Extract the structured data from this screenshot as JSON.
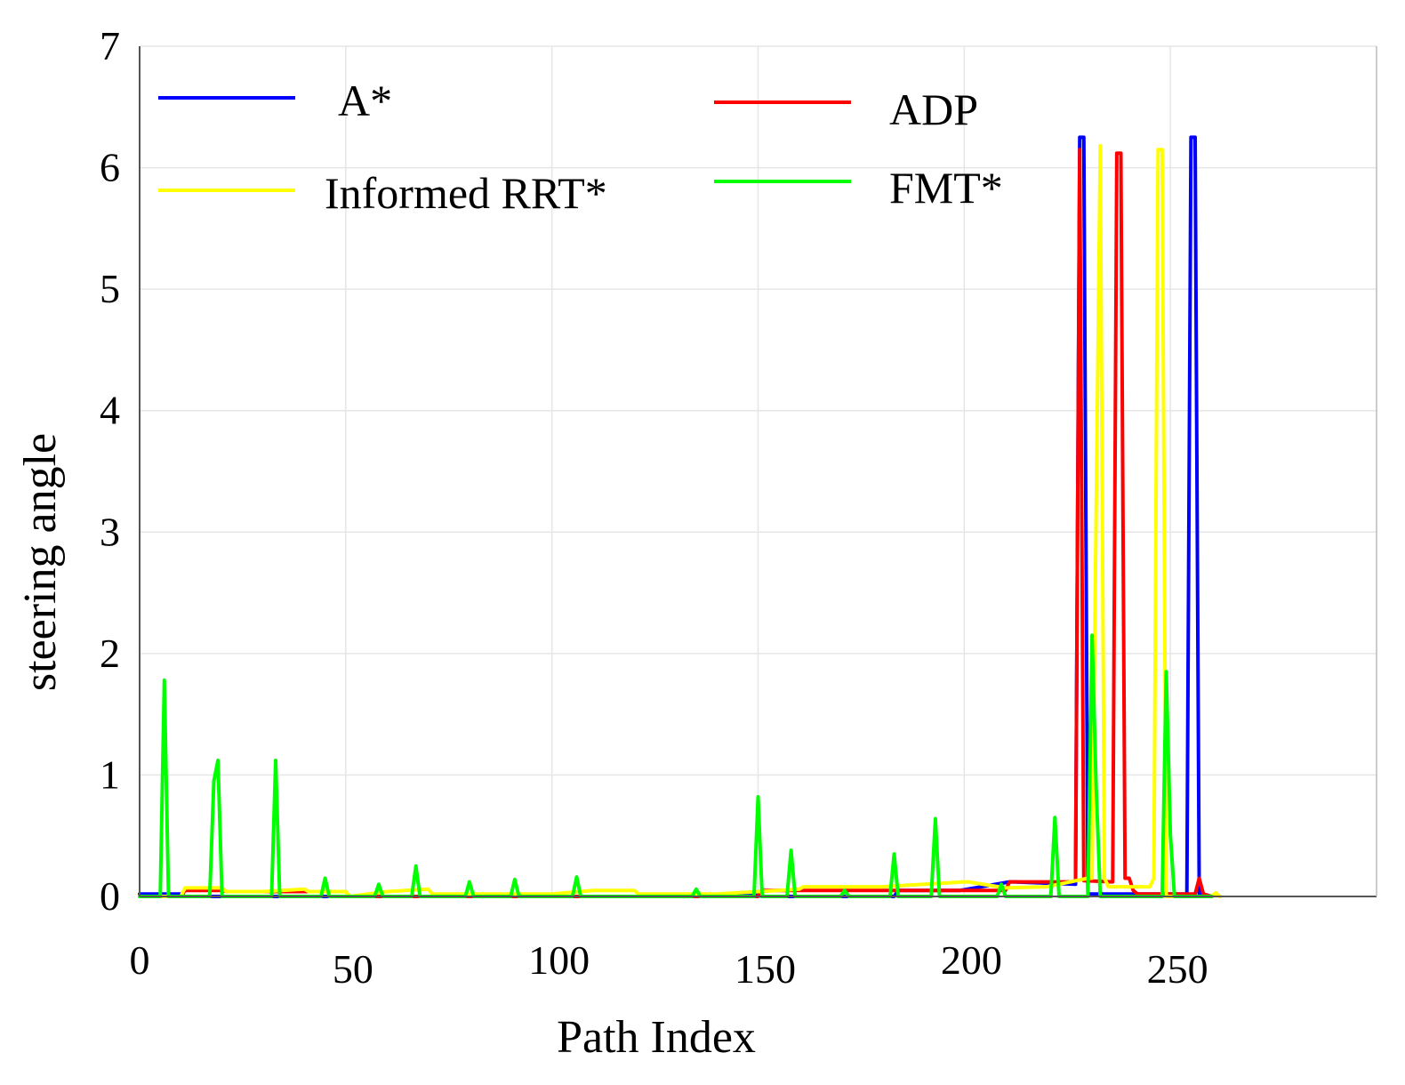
{
  "chart_data": {
    "type": "line",
    "title": "",
    "xlabel": "Path Index",
    "ylabel": "steering angle",
    "xlim": [
      0,
      300
    ],
    "ylim": [
      0,
      7
    ],
    "xticks": [
      0,
      50,
      100,
      150,
      200,
      250
    ],
    "yticks": [
      0,
      1,
      2,
      3,
      4,
      5,
      6,
      7
    ],
    "grid": true,
    "legend_position": "top",
    "series": [
      {
        "name": "A*",
        "color": "#0000ff",
        "x": [
          0,
          4,
          5,
          10,
          11,
          130,
          131,
          150,
          151,
          183,
          184,
          198,
          199,
          211,
          212,
          227,
          228,
          229,
          230,
          254,
          255,
          256,
          257,
          258,
          260
        ],
        "y": [
          0.02,
          0.02,
          0.02,
          0.02,
          0,
          0,
          0.01,
          0.01,
          0,
          0,
          0.05,
          0.05,
          0.05,
          0.12,
          0.12,
          0.1,
          6.25,
          6.25,
          0.02,
          0.02,
          6.25,
          6.25,
          0.02,
          0.02,
          0
        ]
      },
      {
        "name": "ADP",
        "color": "#ff0000",
        "x": [
          0,
          10,
          11,
          20,
          21,
          50,
          51,
          150,
          151,
          210,
          211,
          226,
          227,
          228,
          229,
          236,
          237,
          238,
          239,
          240,
          241,
          242,
          256,
          257,
          258,
          260
        ],
        "y": [
          0,
          0,
          0.05,
          0.05,
          0.04,
          0.04,
          0,
          0,
          0.05,
          0.05,
          0.12,
          0.12,
          0.13,
          6.15,
          0.13,
          0.12,
          6.12,
          6.12,
          0.15,
          0.15,
          0.05,
          0.02,
          0.02,
          0.15,
          0.02,
          0
        ]
      },
      {
        "name": "Informed RRT*",
        "color": "#ffff00",
        "x": [
          0,
          10,
          11,
          20,
          21,
          30,
          40,
          41,
          50,
          51,
          60,
          70,
          71,
          100,
          110,
          120,
          121,
          140,
          160,
          161,
          180,
          200,
          201,
          210,
          220,
          230,
          231,
          233,
          234,
          235,
          245,
          246,
          247,
          248,
          249,
          260,
          261,
          262
        ],
        "y": [
          0,
          0,
          0.07,
          0.07,
          0.04,
          0.04,
          0.06,
          0.04,
          0.04,
          0,
          0.04,
          0.06,
          0.02,
          0.02,
          0.05,
          0.05,
          0.02,
          0.02,
          0.06,
          0.08,
          0.08,
          0.12,
          0.12,
          0.07,
          0.08,
          0.15,
          0.15,
          6.18,
          0.15,
          0.08,
          0.08,
          0.15,
          6.15,
          6.15,
          0,
          0,
          0.03,
          0
        ]
      },
      {
        "name": "FMT*",
        "color": "#00ff00",
        "x": [
          0,
          5,
          6,
          7,
          8,
          17,
          18,
          19,
          20,
          21,
          32,
          33,
          34,
          35,
          44,
          45,
          46,
          57,
          58,
          59,
          66,
          67,
          68,
          79,
          80,
          81,
          90,
          91,
          92,
          105,
          106,
          107,
          134,
          135,
          136,
          149,
          150,
          151,
          157,
          158,
          159,
          170,
          171,
          172,
          182,
          183,
          184,
          192,
          193,
          194,
          208,
          209,
          210,
          221,
          222,
          223,
          230,
          231,
          232,
          233,
          248,
          249,
          250,
          251,
          260
        ],
        "y": [
          0,
          0,
          1.78,
          0,
          0,
          0,
          0.95,
          1.12,
          0,
          0,
          0,
          1.12,
          0,
          0,
          0,
          0.15,
          0,
          0,
          0.1,
          0,
          0,
          0.25,
          0,
          0,
          0.12,
          0,
          0,
          0.14,
          0,
          0,
          0.16,
          0,
          0,
          0.06,
          0,
          0,
          0.82,
          0,
          0,
          0.38,
          0,
          0,
          0.05,
          0,
          0,
          0.35,
          0,
          0,
          0.64,
          0,
          0,
          0.1,
          0,
          0,
          0.65,
          0,
          0,
          2.15,
          0.9,
          0,
          0,
          1.85,
          0.5,
          0,
          0
        ]
      }
    ],
    "legend": [
      {
        "label": "A*",
        "color": "#0000ff"
      },
      {
        "label": "ADP",
        "color": "#ff0000"
      },
      {
        "label": "Informed RRT*",
        "color": "#ffff00"
      },
      {
        "label": "FMT*",
        "color": "#00ff00"
      }
    ]
  }
}
